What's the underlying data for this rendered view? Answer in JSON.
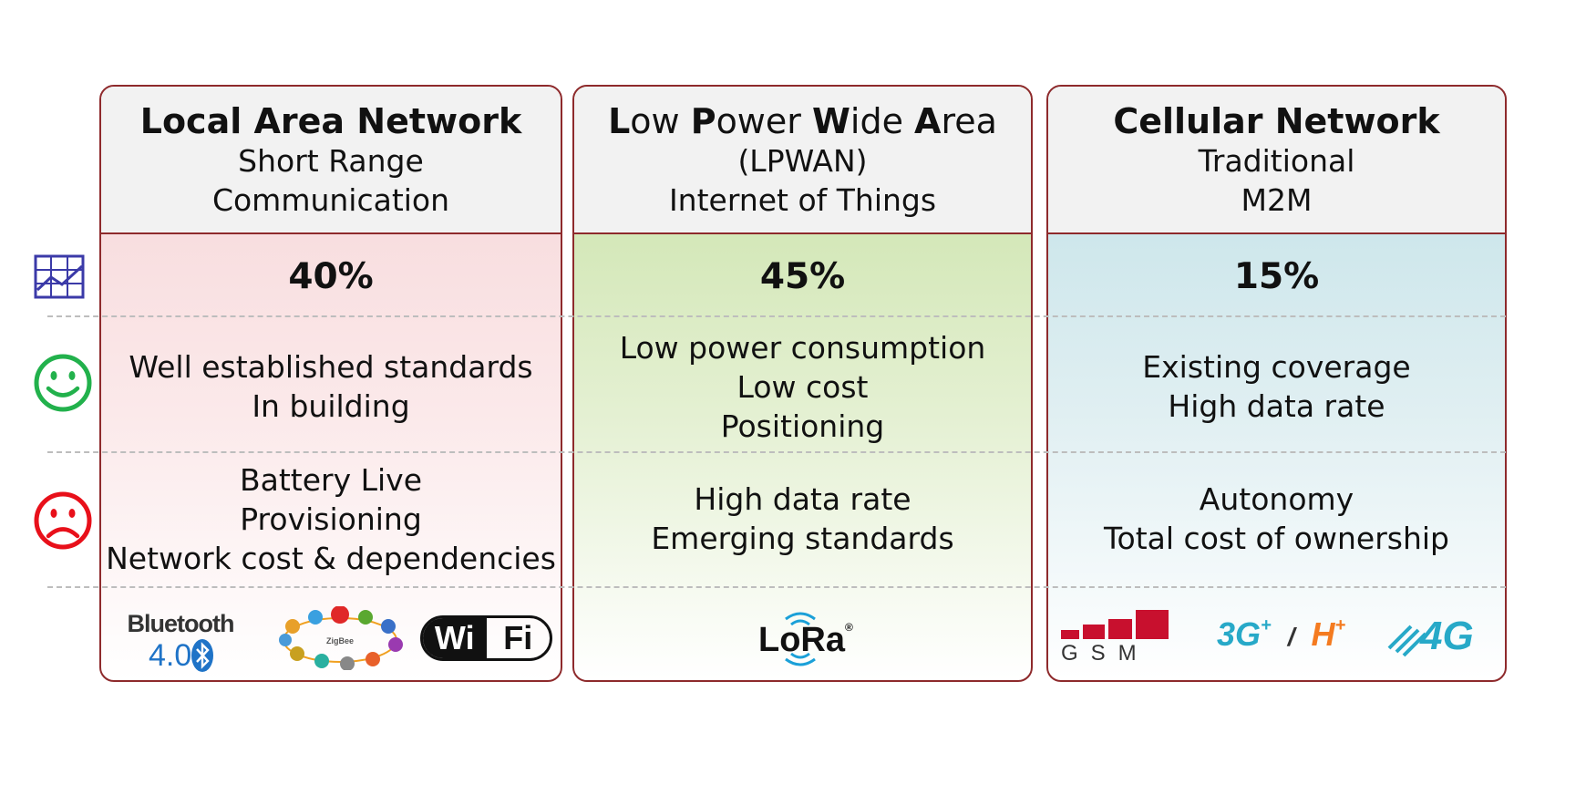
{
  "rows": {
    "share_icon": "chart-grid-icon",
    "pros_icon": "smiley-icon",
    "cons_icon": "frowny-icon",
    "pros_color": "#22b14c",
    "cons_color": "#e8101a",
    "share_icon_color": "#3b3aa8"
  },
  "columns": [
    {
      "title": "Local Area Network",
      "subtitle_lines": [
        "Short Range",
        "Communication"
      ],
      "share": "40%",
      "pros": [
        "Well established standards",
        "In building"
      ],
      "cons": [
        "Battery Live",
        "Provisioning",
        "Network cost & dependencies"
      ],
      "logos": {
        "bluetooth_word": "Bluetooth",
        "bluetooth_version": "4.0",
        "zigbee_word": "ZigBee",
        "wifi_left": "Wi",
        "wifi_right": "Fi"
      },
      "background": "#f6d5d7"
    },
    {
      "title_parts": [
        {
          "cap": "L",
          "rest": "ow "
        },
        {
          "cap": "P",
          "rest": "ower "
        },
        {
          "cap": "W",
          "rest": "ide "
        },
        {
          "cap": "A",
          "rest": "rea"
        }
      ],
      "subtitle_lines": [
        "(LPWAN)",
        "Internet of Things"
      ],
      "share": "45%",
      "pros": [
        "Low power consumption",
        "Low cost",
        "Positioning"
      ],
      "cons": [
        "High data rate",
        "Emerging standards"
      ],
      "logos": {
        "lora_word": "LoRa",
        "lora_mark": "®"
      },
      "background": "#c7e1a4"
    },
    {
      "title": "Cellular Network",
      "subtitle_lines": [
        "Traditional",
        "M2M"
      ],
      "share": "15%",
      "pros": [
        "Existing coverage",
        "High data rate"
      ],
      "cons": [
        "Autonomy",
        "Total cost of ownership"
      ],
      "logos": {
        "gsm_word": "GSM",
        "threeg_word": "3G",
        "threeg_plus": "+",
        "slash": "/",
        "h_word": "H",
        "h_plus": "+",
        "fourg_word": "4G"
      },
      "background": "#bfe0e6"
    }
  ],
  "colors": {
    "border": "#8e2a2c",
    "header_bg": "#f2f2f2",
    "bluetooth_blue": "#1f73c7",
    "wifi_black": "#111111",
    "lora_blue": "#1aa0d8",
    "gsm_red": "#c8102e",
    "threeg_teal": "#27a9c8",
    "h_orange": "#f47b20",
    "fourg_blue": "#27a9c8"
  }
}
